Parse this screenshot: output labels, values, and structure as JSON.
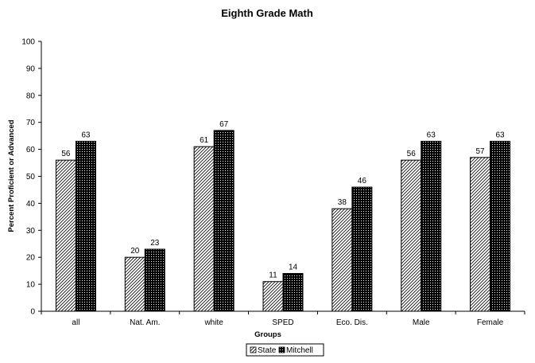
{
  "chart_data": {
    "type": "bar",
    "title": "Eighth Grade Math",
    "xlabel": "Groups",
    "ylabel": "Percent Proficient or Advanced",
    "ylim": [
      0,
      100
    ],
    "yticks": [
      0,
      10,
      20,
      30,
      40,
      50,
      60,
      70,
      80,
      90,
      100
    ],
    "categories": [
      "all",
      "Nat. Am.",
      "white",
      "SPED",
      "Eco. Dis.",
      "Male",
      "Female"
    ],
    "series": [
      {
        "name": "State",
        "values": [
          56,
          20,
          61,
          11,
          38,
          56,
          57
        ],
        "pattern": "diagonal-hatch",
        "color": "#000000"
      },
      {
        "name": "Mitchell",
        "values": [
          63,
          23,
          67,
          14,
          46,
          63,
          63
        ],
        "pattern": "dense-crosshatch",
        "color": "#000000"
      }
    ],
    "grid": false,
    "legend": "bottom-center"
  }
}
